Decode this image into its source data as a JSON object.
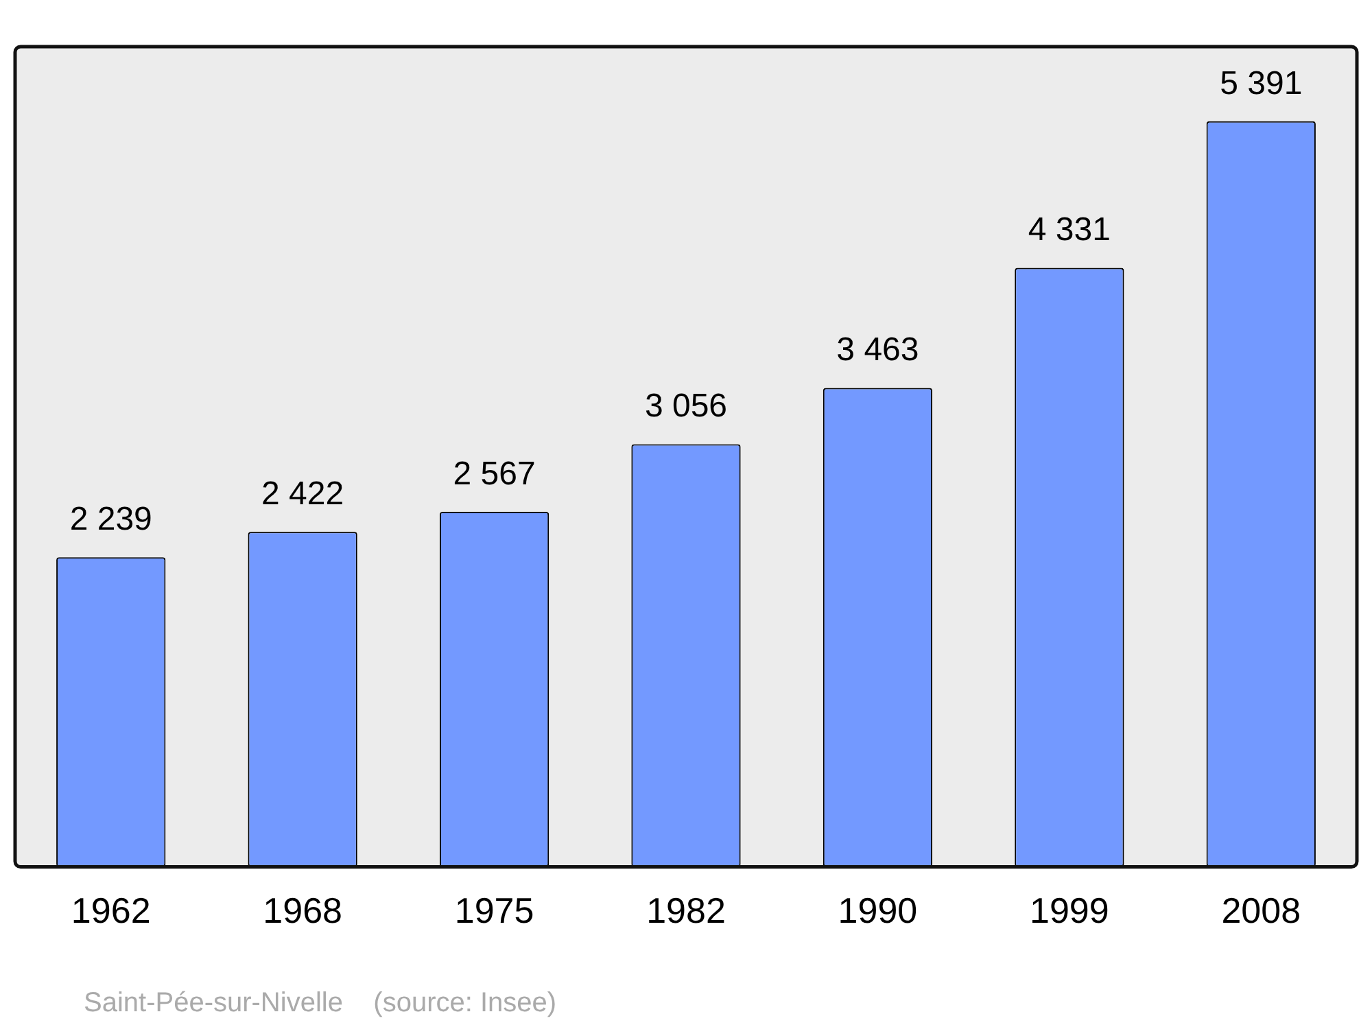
{
  "chart_data": {
    "type": "bar",
    "categories": [
      "1962",
      "1968",
      "1975",
      "1982",
      "1990",
      "1999",
      "2008"
    ],
    "values": [
      2239,
      2422,
      2567,
      3056,
      3463,
      4331,
      5391
    ],
    "value_labels": [
      "2 239",
      "2 422",
      "2 567",
      "3 056",
      "3 463",
      "4 331",
      "5 391"
    ],
    "color": "#7399ff",
    "ylim": [
      0,
      5930
    ],
    "annotations": [
      "Saint-Pée-sur-Nivelle    (source: Insee)"
    ]
  }
}
